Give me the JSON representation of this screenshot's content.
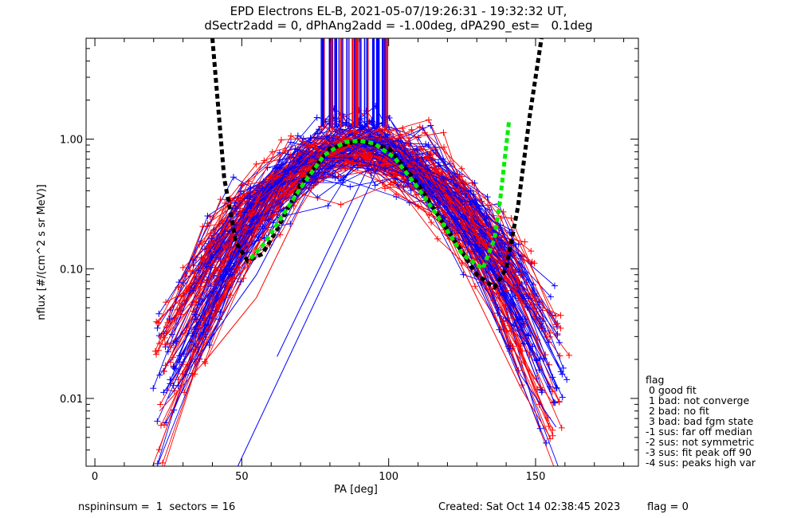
{
  "title": {
    "line1": "EPD Electrons EL-B, 2021-05-07/19:26:31 - 19:32:32 UT,",
    "line2": "dSectr2add = 0, dPhAng2add = -1.00deg, dPA290_est=   0.1deg"
  },
  "footer": {
    "left": "nspininsum =  1  sectors = 16",
    "created": "Created: Sat Oct 14 02:38:45 2023",
    "flag": "flag = 0"
  },
  "flag_legend": {
    "header": "flag",
    "items": [
      " 0 good fit",
      " 1 bad: not converge",
      " 2 bad: no fit",
      " 3 bad: bad fgm state",
      "-1 sus: far off median",
      "-2 sus: not symmetric",
      "-3 sus: fit peak off 90",
      "-4 sus: peaks high var"
    ]
  },
  "colors": {
    "series_a": "#ff0000",
    "series_b": "#0000ff",
    "fit_black": "#000000",
    "fit_green": "#00ee00",
    "axis": "#000000"
  },
  "chart_data": {
    "type": "line",
    "title": "EPD Electrons EL-B, 2021-05-07/19:26:31 - 19:32:32 UT,",
    "xlabel": "PA [deg]",
    "ylabel": "nflux [#/(cm^2 s sr MeV)]",
    "xlim": [
      -3,
      185
    ],
    "ylim": [
      0.003,
      6.0
    ],
    "yscale": "log",
    "x_ticks": [
      0,
      50,
      100,
      150
    ],
    "x_tick_labels": [
      "0",
      "50",
      "100",
      "150"
    ],
    "y_ticks": [
      0.01,
      0.1,
      1.0
    ],
    "y_tick_labels": [
      "0.01",
      "0.10",
      "1.00"
    ],
    "series_note": "many red and blue per-sector PA distributions",
    "representative_series": [
      {
        "color": "red",
        "x": [
          22,
          38,
          55,
          70,
          82,
          90,
          100,
          115,
          130,
          145,
          155
        ],
        "y": [
          0.008,
          0.02,
          0.06,
          0.3,
          0.8,
          0.95,
          0.85,
          0.3,
          0.06,
          0.012,
          0.005
        ]
      },
      {
        "color": "blue",
        "x": [
          25,
          40,
          55,
          70,
          82,
          90,
          100,
          115,
          130,
          145,
          157
        ],
        "y": [
          0.01,
          0.03,
          0.09,
          0.4,
          0.9,
          0.98,
          0.9,
          0.35,
          0.08,
          0.015,
          0.006
        ]
      }
    ],
    "fit_black": {
      "x": [
        40,
        44,
        48,
        52,
        57,
        62,
        70,
        80,
        90,
        100,
        110,
        120,
        130,
        136,
        140,
        144,
        148,
        152
      ],
      "y": [
        6.0,
        0.5,
        0.16,
        0.115,
        0.13,
        0.2,
        0.45,
        0.85,
        0.97,
        0.85,
        0.45,
        0.2,
        0.09,
        0.072,
        0.1,
        0.3,
        1.5,
        6.0
      ]
    },
    "fit_green": {
      "x": [
        53,
        58,
        63,
        70,
        78,
        85,
        90,
        95,
        102,
        110,
        118,
        125,
        132,
        136,
        138,
        141
      ],
      "y": [
        0.12,
        0.16,
        0.24,
        0.42,
        0.75,
        0.95,
        0.97,
        0.93,
        0.72,
        0.42,
        0.23,
        0.13,
        0.1,
        0.17,
        0.35,
        1.4
      ]
    }
  }
}
